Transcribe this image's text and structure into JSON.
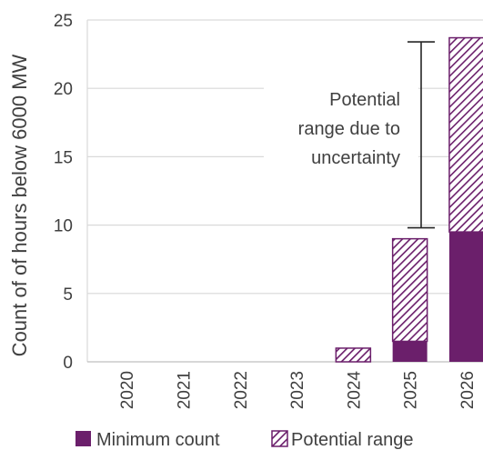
{
  "chart_data": {
    "type": "bar",
    "stacked": true,
    "categories": [
      "2020",
      "2021",
      "2022",
      "2023",
      "2024",
      "2025",
      "2026"
    ],
    "series": [
      {
        "name": "Minimum count",
        "values": [
          0,
          0,
          0,
          0,
          0,
          1.5,
          9.5
        ],
        "color": "#6b1f6b",
        "pattern": "solid"
      },
      {
        "name": "Potential range",
        "values": [
          0,
          0,
          0,
          0,
          1,
          7.5,
          14.2
        ],
        "color": "#6b1f6b",
        "pattern": "hatched"
      }
    ],
    "xlabel": "",
    "ylabel": "Count of of hours below 6000 MW",
    "ylim": [
      0,
      25
    ],
    "yticks": [
      0,
      5,
      10,
      15,
      20,
      25
    ],
    "grid": true,
    "legend_position": "bottom",
    "annotation": {
      "lines": [
        "Potential",
        "range due to",
        "uncertainty"
      ],
      "bracket_range": [
        9.8,
        23.4
      ]
    }
  }
}
